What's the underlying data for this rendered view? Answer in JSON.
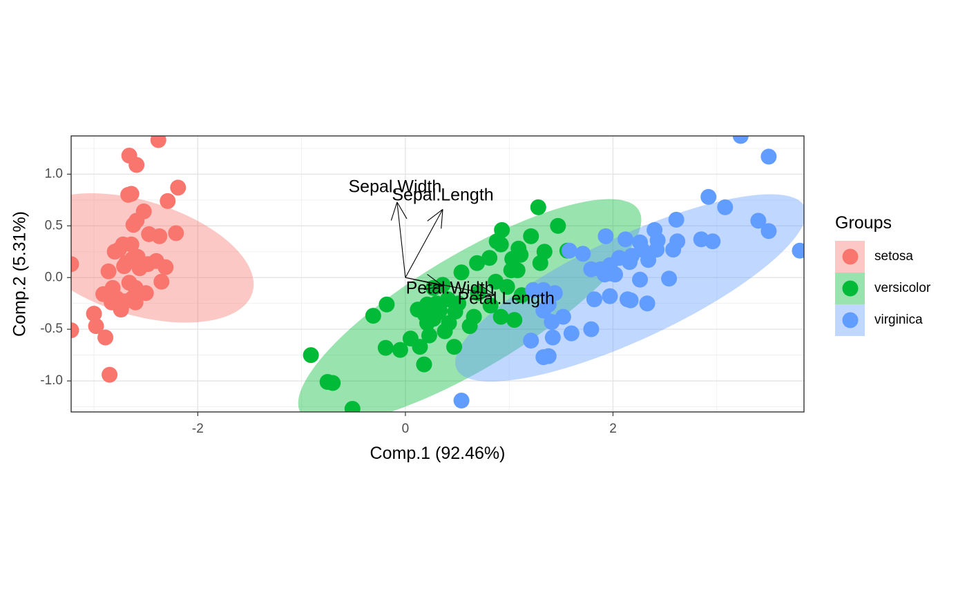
{
  "chart_data": {
    "type": "scatter",
    "title": "",
    "xlabel": "Comp.1 (92.46%)",
    "ylabel": "Comp.2 (5.31%)",
    "xlim": [
      -3.22,
      3.84
    ],
    "ylim": [
      -1.3,
      1.37
    ],
    "xticks": [
      -2,
      0,
      2
    ],
    "xtick_labels": [
      "-2",
      "0",
      "2"
    ],
    "yticks": [
      -1.0,
      -0.5,
      0.0,
      0.5,
      1.0
    ],
    "ytick_labels": [
      "-1.0",
      "-0.5",
      "0.0",
      "0.5",
      "1.0"
    ],
    "grid": true,
    "legend": {
      "title": "Groups",
      "position": "right"
    },
    "series": [
      {
        "name": "setosa",
        "color": "#F8766D",
        "ellipse": {
          "cx": -2.57,
          "cy": 0.19,
          "rx": 0.55,
          "ry": 1.15,
          "angle_deg": -73
        },
        "points": [
          [
            -2.38,
            1.33
          ],
          [
            -2.66,
            1.18
          ],
          [
            -2.59,
            1.09
          ],
          [
            -2.64,
            0.81
          ],
          [
            -2.67,
            0.8
          ],
          [
            -2.19,
            0.87
          ],
          [
            -2.29,
            0.74
          ],
          [
            -2.52,
            0.64
          ],
          [
            -2.59,
            0.55
          ],
          [
            -2.62,
            0.51
          ],
          [
            -2.21,
            0.43
          ],
          [
            -2.37,
            0.4
          ],
          [
            -2.47,
            0.42
          ],
          [
            -2.72,
            0.32
          ],
          [
            -2.64,
            0.32
          ],
          [
            -2.8,
            0.25
          ],
          [
            -2.76,
            0.27
          ],
          [
            -2.63,
            0.18
          ],
          [
            -2.58,
            0.2
          ],
          [
            -2.69,
            0.14
          ],
          [
            -2.71,
            0.11
          ],
          [
            -2.48,
            0.13
          ],
          [
            -2.31,
            0.1
          ],
          [
            -2.4,
            0.16
          ],
          [
            -2.86,
            0.06
          ],
          [
            -2.56,
            0.09
          ],
          [
            -2.35,
            -0.04
          ],
          [
            -2.66,
            -0.05
          ],
          [
            -2.6,
            -0.1
          ],
          [
            -2.82,
            -0.1
          ],
          [
            -2.91,
            -0.16
          ],
          [
            -2.5,
            -0.15
          ],
          [
            -2.78,
            -0.2
          ],
          [
            -2.7,
            -0.23
          ],
          [
            -2.63,
            -0.2
          ],
          [
            -2.83,
            -0.24
          ],
          [
            -2.74,
            -0.28
          ],
          [
            -2.6,
            -0.24
          ],
          [
            -2.74,
            -0.31
          ],
          [
            -3.0,
            -0.35
          ],
          [
            -2.98,
            -0.47
          ],
          [
            -2.89,
            -0.58
          ],
          [
            -3.22,
            0.13
          ],
          [
            -3.22,
            -0.51
          ],
          [
            -2.85,
            -0.94
          ]
        ]
      },
      {
        "name": "versicolor",
        "color": "#00BA38",
        "ellipse": {
          "cx": 0.62,
          "cy": -0.33,
          "rx": 1.9,
          "ry": 0.55,
          "angle_deg": -31
        },
        "points": [
          [
            1.28,
            0.68
          ],
          [
            1.47,
            0.5
          ],
          [
            0.93,
            0.46
          ],
          [
            1.21,
            0.4
          ],
          [
            0.92,
            0.32
          ],
          [
            1.09,
            0.28
          ],
          [
            0.88,
            0.35
          ],
          [
            1.34,
            0.25
          ],
          [
            1.56,
            0.26
          ],
          [
            1.03,
            0.18
          ],
          [
            0.69,
            0.14
          ],
          [
            0.81,
            0.19
          ],
          [
            1.11,
            0.22
          ],
          [
            1.3,
            0.14
          ],
          [
            1.02,
            0.07
          ],
          [
            1.08,
            0.07
          ],
          [
            0.54,
            0.05
          ],
          [
            0.87,
            -0.04
          ],
          [
            0.36,
            -0.07
          ],
          [
            0.98,
            -0.09
          ],
          [
            1.12,
            -0.17
          ],
          [
            0.27,
            -0.1
          ],
          [
            0.7,
            -0.15
          ],
          [
            0.41,
            -0.21
          ],
          [
            0.3,
            -0.25
          ],
          [
            0.21,
            -0.26
          ],
          [
            0.51,
            -0.25
          ],
          [
            0.82,
            -0.27
          ],
          [
            0.24,
            -0.32
          ],
          [
            0.33,
            -0.32
          ],
          [
            0.12,
            -0.31
          ],
          [
            -0.18,
            -0.26
          ],
          [
            0.3,
            -0.35
          ],
          [
            0.19,
            -0.36
          ],
          [
            0.48,
            -0.33
          ],
          [
            0.27,
            -0.4
          ],
          [
            0.21,
            -0.44
          ],
          [
            0.42,
            -0.44
          ],
          [
            0.38,
            -0.52
          ],
          [
            0.66,
            -0.38
          ],
          [
            0.92,
            -0.38
          ],
          [
            1.05,
            -0.41
          ],
          [
            0.23,
            -0.56
          ],
          [
            -0.31,
            -0.37
          ],
          [
            0.05,
            -0.59
          ],
          [
            -0.19,
            -0.68
          ],
          [
            -0.05,
            -0.7
          ],
          [
            0.14,
            -0.67
          ],
          [
            0.47,
            -0.67
          ],
          [
            0.62,
            -0.47
          ],
          [
            0.18,
            -0.84
          ],
          [
            -0.91,
            -0.75
          ],
          [
            -0.75,
            -1.01
          ],
          [
            -0.7,
            -1.02
          ],
          [
            -0.51,
            -1.27
          ]
        ]
      },
      {
        "name": "virginica",
        "color": "#619CFF",
        "ellipse": {
          "cx": 2.17,
          "cy": -0.1,
          "rx": 1.85,
          "ry": 0.5,
          "angle_deg": -25
        },
        "points": [
          [
            3.23,
            1.37
          ],
          [
            3.5,
            1.17
          ],
          [
            2.92,
            0.78
          ],
          [
            3.08,
            0.68
          ],
          [
            3.4,
            0.55
          ],
          [
            3.5,
            0.45
          ],
          [
            3.8,
            0.26
          ],
          [
            2.61,
            0.56
          ],
          [
            2.4,
            0.46
          ],
          [
            2.62,
            0.35
          ],
          [
            2.85,
            0.37
          ],
          [
            2.96,
            0.35
          ],
          [
            2.43,
            0.36
          ],
          [
            2.26,
            0.34
          ],
          [
            2.12,
            0.37
          ],
          [
            1.93,
            0.4
          ],
          [
            2.28,
            0.27
          ],
          [
            2.58,
            0.27
          ],
          [
            2.42,
            0.27
          ],
          [
            2.18,
            0.21
          ],
          [
            2.06,
            0.19
          ],
          [
            2.34,
            0.17
          ],
          [
            2.16,
            0.15
          ],
          [
            1.71,
            0.23
          ],
          [
            1.58,
            0.26
          ],
          [
            1.97,
            0.12
          ],
          [
            1.97,
            0.04
          ],
          [
            1.79,
            0.08
          ],
          [
            1.88,
            0.08
          ],
          [
            1.92,
            0.03
          ],
          [
            2.02,
            0.03
          ],
          [
            2.26,
            -0.02
          ],
          [
            2.54,
            -0.01
          ],
          [
            1.23,
            -0.12
          ],
          [
            1.33,
            -0.12
          ],
          [
            1.44,
            -0.15
          ],
          [
            1.97,
            -0.18
          ],
          [
            2.14,
            -0.21
          ],
          [
            2.17,
            -0.22
          ],
          [
            2.33,
            -0.25
          ],
          [
            1.82,
            -0.21
          ],
          [
            1.38,
            -0.26
          ],
          [
            1.33,
            -0.32
          ],
          [
            1.52,
            -0.38
          ],
          [
            1.41,
            -0.43
          ],
          [
            1.79,
            -0.5
          ],
          [
            1.6,
            -0.54
          ],
          [
            1.42,
            -0.58
          ],
          [
            1.21,
            -0.61
          ],
          [
            1.38,
            -0.76
          ],
          [
            1.33,
            -0.77
          ],
          [
            0.54,
            -1.19
          ]
        ]
      }
    ],
    "loadings": [
      {
        "label": "Sepal.Length",
        "x": 0.36,
        "y": 0.66
      },
      {
        "label": "Sepal.Width",
        "x": -0.08,
        "y": 0.73
      },
      {
        "label": "Petal.Length",
        "x": 0.86,
        "y": -0.17
      },
      {
        "label": "Petal.Width",
        "x": 0.36,
        "y": -0.08
      }
    ],
    "loading_labels": [
      {
        "label": "Sepal.Width",
        "x": -0.1,
        "y": 0.87
      },
      {
        "label": "Sepal.Length",
        "x": 0.36,
        "y": 0.79
      },
      {
        "label": "Petal.Width",
        "x": 0.43,
        "y": -0.11
      },
      {
        "label": "Petal.Length",
        "x": 0.97,
        "y": -0.21
      }
    ]
  }
}
